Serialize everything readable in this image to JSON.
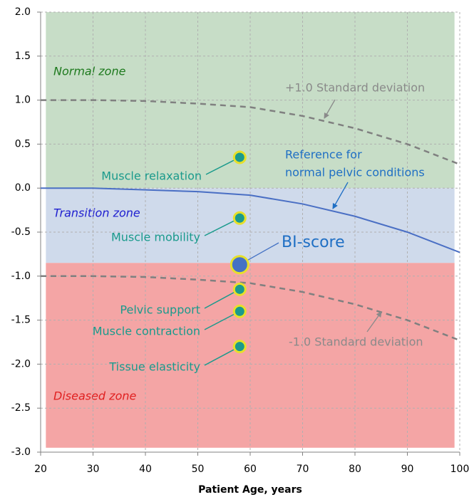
{
  "chart_data": {
    "type": "scatter",
    "xlabel": "Patient Age, years",
    "xlim": [
      20,
      100
    ],
    "ylim": [
      -3,
      2
    ],
    "xticks": [
      20,
      30,
      40,
      50,
      60,
      70,
      80,
      90,
      100
    ],
    "yticks": [
      {
        "value": 2,
        "label": "2.0"
      },
      1.5,
      {
        "value": 1,
        "label": "1.0"
      },
      0.5,
      {
        "value": 0,
        "label": "0.0"
      },
      -0.5,
      {
        "value": -1,
        "label": "-1.0"
      },
      -1.5,
      {
        "value": -2,
        "label": "-2.0"
      },
      -2.5,
      {
        "value": -3,
        "label": "-3.0"
      }
    ],
    "grid": true,
    "zones": [
      {
        "name": "Normal zone",
        "color": "#c7ddc7",
        "label_color": "#1e7a1e",
        "x_range": [
          21,
          99
        ],
        "range": [
          0,
          2
        ]
      },
      {
        "name": "Transition zone",
        "color": "#cfdaeb",
        "label_color": "#2020d0",
        "x_range": [
          21,
          99
        ],
        "range": [
          -0.85,
          0
        ]
      },
      {
        "name": "Diseased zone",
        "color": "#f4a5a5",
        "label_color": "#e02020",
        "x_range": [
          21,
          99
        ],
        "range": [
          -2.95,
          -0.85
        ]
      }
    ],
    "curves": [
      {
        "label": [
          "+1.0 Standard deviation"
        ],
        "color": "#808080",
        "dashed": true,
        "x": [
          20,
          30,
          40,
          50,
          60,
          70,
          80,
          90,
          100
        ],
        "values": [
          1.0,
          1.0,
          0.99,
          0.96,
          0.92,
          0.82,
          0.68,
          0.5,
          0.27
        ]
      },
      {
        "label": [
          "Reference for",
          "normal pelvic conditions"
        ],
        "color": "#4a6fc4",
        "dashed": false,
        "x": [
          20,
          30,
          40,
          50,
          60,
          70,
          80,
          90,
          100
        ],
        "values": [
          0,
          0,
          -0.02,
          -0.04,
          -0.08,
          -0.18,
          -0.32,
          -0.5,
          -0.73
        ]
      },
      {
        "label": [
          "-1.0 Standard deviation"
        ],
        "color": "#808080",
        "dashed": true,
        "x": [
          20,
          30,
          40,
          50,
          60,
          70,
          80,
          90,
          100
        ],
        "values": [
          -1.0,
          -1.0,
          -1.01,
          -1.04,
          -1.08,
          -1.18,
          -1.32,
          -1.5,
          -1.73
        ]
      }
    ],
    "points": [
      {
        "name": "Muscle relaxation",
        "x": 58,
        "value": 0.35,
        "color": "#1a9a8c"
      },
      {
        "name": "Muscle mobility",
        "x": 58,
        "value": -0.34,
        "color": "#1a9a8c"
      },
      {
        "name": "BI-score",
        "x": 58,
        "value": -0.87,
        "color": "#4472c4"
      },
      {
        "name": "Pelvic support",
        "x": 58,
        "value": -1.15,
        "color": "#1a9a8c"
      },
      {
        "name": "Muscle contraction",
        "x": 58,
        "value": -1.4,
        "color": "#1a9a8c"
      },
      {
        "name": "Tissue elasticity",
        "x": 58,
        "value": -1.8,
        "color": "#1a9a8c"
      }
    ]
  }
}
